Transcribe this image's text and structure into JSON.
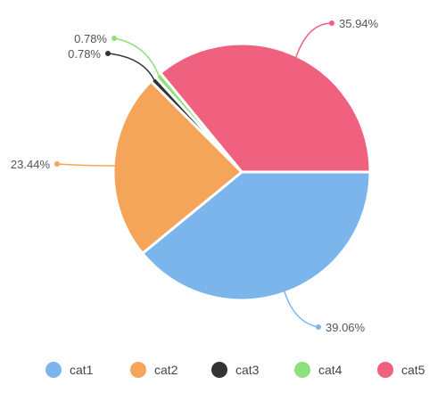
{
  "chart_data": {
    "type": "pie",
    "categories": [
      "cat1",
      "cat2",
      "cat3",
      "cat4",
      "cat5"
    ],
    "values": [
      39.06,
      23.44,
      0.78,
      0.78,
      35.94
    ],
    "labels": [
      "39.06%",
      "23.44%",
      "0.78%",
      "0.78%",
      "35.94%"
    ],
    "colors": [
      "#7cb5ec",
      "#f5a55a",
      "#333333",
      "#8de07a",
      "#f0607f"
    ],
    "legend": {
      "position": "bottom",
      "items": [
        "cat1",
        "cat2",
        "cat3",
        "cat4",
        "cat5"
      ]
    }
  }
}
